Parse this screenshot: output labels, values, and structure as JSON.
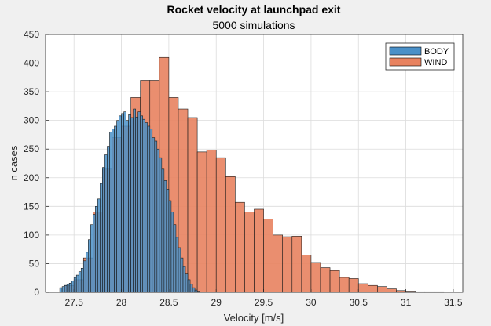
{
  "chart_data": {
    "type": "histogram",
    "title": "Rocket velocity at launchpad exit",
    "subtitle": "5000 simulations",
    "xlabel": "Velocity [m/s]",
    "ylabel": "n cases",
    "xlim": [
      27.2,
      31.6
    ],
    "ylim": [
      0,
      450
    ],
    "xticks": [
      27.5,
      28,
      28.5,
      29,
      29.5,
      30,
      30.5,
      31,
      31.5
    ],
    "xtick_labels": [
      "27.5",
      "28",
      "28.5",
      "29",
      "29.5",
      "30",
      "30.5",
      "31",
      "31.5"
    ],
    "yticks": [
      0,
      50,
      100,
      150,
      200,
      250,
      300,
      350,
      400,
      450
    ],
    "ytick_labels": [
      "0",
      "50",
      "100",
      "150",
      "200",
      "250",
      "300",
      "350",
      "400",
      "450"
    ],
    "grid": true,
    "legend_position": "top-right",
    "series": [
      {
        "name": "BODY",
        "color": "#4a90c8",
        "bin_width": 0.025,
        "bins": [
          [
            27.35,
            8
          ],
          [
            27.375,
            10
          ],
          [
            27.4,
            12
          ],
          [
            27.425,
            14
          ],
          [
            27.45,
            16
          ],
          [
            27.475,
            20
          ],
          [
            27.5,
            26
          ],
          [
            27.525,
            30
          ],
          [
            27.55,
            36
          ],
          [
            27.575,
            42
          ],
          [
            27.6,
            55
          ],
          [
            27.625,
            70
          ],
          [
            27.65,
            92
          ],
          [
            27.675,
            118
          ],
          [
            27.7,
            136
          ],
          [
            27.725,
            150
          ],
          [
            27.75,
            163
          ],
          [
            27.775,
            190
          ],
          [
            27.8,
            218
          ],
          [
            27.825,
            240
          ],
          [
            27.85,
            255
          ],
          [
            27.875,
            280
          ],
          [
            27.9,
            285
          ],
          [
            27.925,
            290
          ],
          [
            27.95,
            300
          ],
          [
            27.975,
            308
          ],
          [
            28,
            312
          ],
          [
            28.025,
            315
          ],
          [
            28.05,
            300
          ],
          [
            28.075,
            310
          ],
          [
            28.1,
            305
          ],
          [
            28.125,
            320
          ],
          [
            28.15,
            306
          ],
          [
            28.175,
            315
          ],
          [
            28.2,
            308
          ],
          [
            28.225,
            302
          ],
          [
            28.25,
            296
          ],
          [
            28.275,
            290
          ],
          [
            28.3,
            285
          ],
          [
            28.325,
            270
          ],
          [
            28.35,
            264
          ],
          [
            28.375,
            250
          ],
          [
            28.4,
            235
          ],
          [
            28.425,
            215
          ],
          [
            28.45,
            195
          ],
          [
            28.475,
            180
          ],
          [
            28.5,
            160
          ],
          [
            28.525,
            140
          ],
          [
            28.55,
            118
          ],
          [
            28.575,
            96
          ],
          [
            28.6,
            78
          ],
          [
            28.625,
            60
          ],
          [
            28.65,
            45
          ],
          [
            28.675,
            32
          ],
          [
            28.7,
            22
          ],
          [
            28.725,
            14
          ],
          [
            28.75,
            8
          ],
          [
            28.775,
            4
          ],
          [
            28.8,
            2
          ]
        ]
      },
      {
        "name": "WIND",
        "color": "#e8825f",
        "bin_width": 0.1,
        "bins": [
          [
            27.4,
            12
          ],
          [
            27.5,
            22
          ],
          [
            27.6,
            60
          ],
          [
            27.7,
            140
          ],
          [
            27.8,
            215
          ],
          [
            27.9,
            270
          ],
          [
            28.0,
            290
          ],
          [
            28.1,
            340
          ],
          [
            28.2,
            370
          ],
          [
            28.3,
            370
          ],
          [
            28.4,
            410
          ],
          [
            28.5,
            340
          ],
          [
            28.6,
            320
          ],
          [
            28.7,
            305
          ],
          [
            28.8,
            245
          ],
          [
            28.9,
            248
          ],
          [
            29.0,
            235
          ],
          [
            29.1,
            202
          ],
          [
            29.2,
            157
          ],
          [
            29.3,
            140
          ],
          [
            29.4,
            145
          ],
          [
            29.5,
            128
          ],
          [
            29.6,
            100
          ],
          [
            29.7,
            97
          ],
          [
            29.8,
            98
          ],
          [
            29.9,
            65
          ],
          [
            30.0,
            52
          ],
          [
            30.1,
            43
          ],
          [
            30.2,
            38
          ],
          [
            30.3,
            26
          ],
          [
            30.4,
            24
          ],
          [
            30.5,
            15
          ],
          [
            30.6,
            12
          ],
          [
            30.7,
            10
          ],
          [
            30.8,
            6
          ],
          [
            30.9,
            3
          ],
          [
            31.0,
            2
          ],
          [
            31.1,
            1
          ],
          [
            31.2,
            1
          ],
          [
            31.3,
            1
          ]
        ]
      }
    ]
  }
}
